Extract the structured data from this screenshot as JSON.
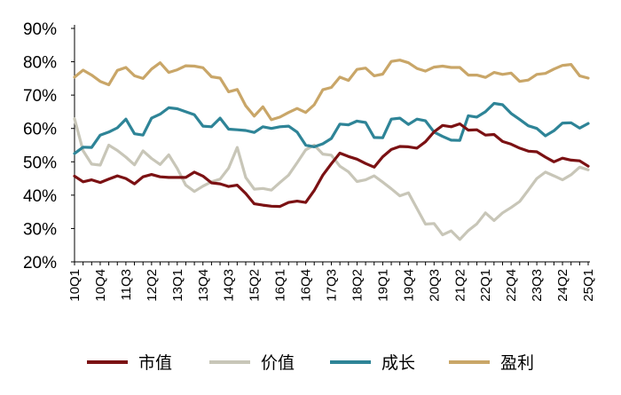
{
  "chart_data": {
    "type": "line",
    "title": "",
    "xlabel": "",
    "ylabel": "",
    "ylim": [
      20,
      90
    ],
    "yticks": [
      20,
      30,
      40,
      50,
      60,
      70,
      80,
      90
    ],
    "ytick_labels": [
      "20%",
      "30%",
      "40%",
      "50%",
      "60%",
      "70%",
      "80%",
      "90%"
    ],
    "grid": false,
    "legend_position": "bottom",
    "x_tick_labels": [
      "10Q1",
      "10Q4",
      "11Q3",
      "12Q2",
      "13Q1",
      "13Q4",
      "14Q3",
      "15Q2",
      "16Q1",
      "16Q4",
      "17Q3",
      "18Q2",
      "19Q1",
      "19Q4",
      "20Q3",
      "21Q2",
      "22Q1",
      "22Q4",
      "23Q3",
      "24Q2",
      "25Q1"
    ],
    "x_tick_every": 3,
    "n_points": 61,
    "series": [
      {
        "name": "市值",
        "color": "#7b1113",
        "values": [
          45.7,
          44.0,
          44.6,
          43.8,
          44.8,
          45.8,
          45.0,
          43.4,
          45.5,
          46.2,
          45.5,
          45.3,
          45.3,
          45.3,
          46.9,
          45.7,
          43.7,
          43.4,
          42.6,
          43.0,
          40.5,
          37.4,
          37.0,
          36.7,
          36.6,
          37.8,
          38.2,
          37.8,
          41.4,
          46.0,
          49.4,
          52.6,
          51.6,
          50.8,
          49.5,
          48.4,
          51.5,
          53.7,
          54.6,
          54.5,
          54.1,
          56.0,
          59.0,
          60.9,
          60.5,
          61.4,
          59.5,
          59.6,
          58.0,
          58.2,
          56.1,
          55.3,
          54.1,
          53.2,
          53.0,
          51.4,
          50.0,
          51.1,
          50.5,
          50.3,
          48.7
        ]
      },
      {
        "name": "价值",
        "color": "#c8c6b8",
        "values": [
          62.9,
          53.3,
          49.3,
          49.0,
          55.0,
          53.4,
          51.4,
          49.1,
          53.3,
          51.0,
          49.2,
          52.1,
          48.0,
          43.0,
          41.1,
          42.7,
          44.0,
          44.8,
          48.1,
          54.3,
          45.3,
          41.8,
          42.0,
          41.5,
          43.8,
          46.0,
          49.7,
          53.6,
          55.0,
          52.3,
          52.0,
          48.7,
          47.0,
          44.1,
          44.6,
          45.8,
          43.9,
          41.9,
          39.8,
          40.7,
          36.0,
          31.3,
          31.5,
          28.1,
          29.3,
          26.7,
          29.4,
          31.4,
          34.7,
          32.4,
          34.7,
          36.3,
          38.1,
          41.5,
          45.0,
          46.9,
          45.8,
          44.6,
          46.1,
          48.4,
          47.6
        ]
      },
      {
        "name": "成长",
        "color": "#2e8497",
        "values": [
          52.5,
          54.4,
          54.3,
          58.0,
          58.9,
          60.2,
          62.8,
          58.4,
          58.0,
          63.1,
          64.3,
          66.2,
          65.9,
          65.0,
          64.1,
          60.7,
          60.5,
          63.1,
          59.8,
          59.6,
          59.4,
          58.8,
          60.5,
          60.0,
          60.5,
          60.7,
          58.9,
          55.0,
          54.5,
          55.4,
          57.0,
          61.3,
          61.1,
          62.2,
          61.8,
          57.3,
          57.2,
          62.8,
          63.1,
          61.2,
          62.8,
          62.3,
          58.9,
          57.6,
          56.5,
          56.4,
          63.8,
          63.4,
          65.0,
          67.5,
          67.1,
          64.5,
          62.7,
          60.8,
          60.0,
          57.8,
          59.3,
          61.6,
          61.7,
          60.1,
          61.5
        ]
      },
      {
        "name": "盈利",
        "color": "#c9a668",
        "values": [
          75.4,
          77.5,
          76.0,
          74.1,
          73.1,
          77.4,
          78.3,
          75.8,
          75.0,
          77.8,
          79.7,
          76.8,
          77.6,
          78.8,
          78.7,
          78.2,
          75.5,
          75.1,
          71.0,
          71.7,
          66.8,
          63.7,
          66.5,
          62.6,
          63.4,
          64.8,
          66.0,
          64.8,
          67.1,
          71.6,
          72.3,
          75.4,
          74.4,
          77.7,
          78.1,
          75.8,
          76.3,
          80.1,
          80.5,
          79.7,
          78.0,
          77.2,
          78.4,
          78.7,
          78.3,
          78.3,
          76.0,
          76.0,
          75.3,
          76.8,
          76.2,
          76.6,
          74.1,
          74.5,
          76.2,
          76.5,
          77.8,
          78.9,
          79.2,
          75.8,
          75.1
        ]
      }
    ]
  }
}
